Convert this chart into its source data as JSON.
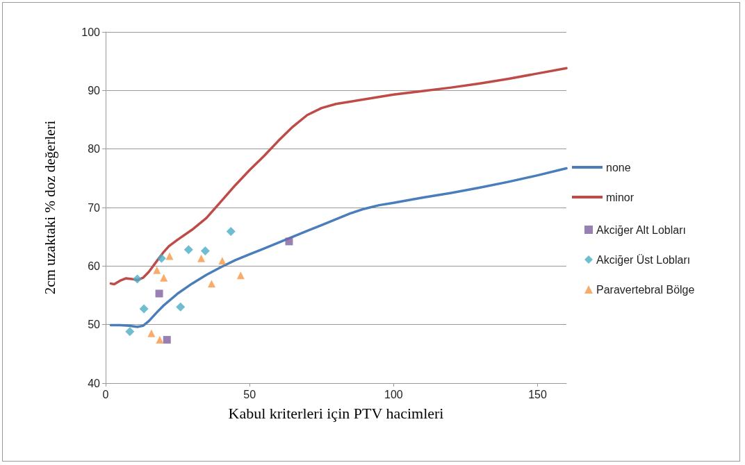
{
  "chart_data": {
    "type": "line",
    "xlabel": "Kabul kriterleri için PTV hacimleri",
    "ylabel": "2cm uzaktaki % doz değerleri",
    "xlim": [
      0,
      160
    ],
    "xticks": [
      0,
      50,
      100,
      150
    ],
    "ylim": [
      40,
      100
    ],
    "yticks": [
      40,
      50,
      60,
      70,
      80,
      90,
      100
    ],
    "grid": "y",
    "legend": "right",
    "marker": "none",
    "line_style": "solid",
    "series": [
      {
        "name": "none",
        "color": "#4a7ebb",
        "x": [
          1.8,
          5,
          8,
          11,
          13,
          15,
          18,
          20,
          25,
          30,
          35,
          40,
          45,
          50,
          55,
          60,
          65,
          70,
          75,
          80,
          85,
          90,
          95,
          100,
          110,
          120,
          130,
          140,
          150,
          160
        ],
        "values": [
          49.9,
          49.9,
          49.8,
          49.6,
          49.8,
          50.6,
          52.2,
          53.2,
          55.3,
          57.0,
          58.5,
          59.8,
          61.0,
          62.0,
          63.0,
          64.0,
          65.0,
          66.0,
          67.0,
          68.0,
          69.0,
          69.8,
          70.4,
          70.8,
          71.7,
          72.5,
          73.4,
          74.4,
          75.5,
          76.7
        ]
      },
      {
        "name": "minor",
        "color": "#be4b48",
        "x": [
          1.8,
          3,
          5,
          7,
          9,
          11,
          13,
          15,
          18,
          20,
          22,
          25,
          30,
          35,
          40,
          45,
          50,
          55,
          60,
          65,
          70,
          75,
          80,
          90,
          100,
          110,
          120,
          130,
          140,
          150,
          160
        ],
        "values": [
          57.0,
          56.9,
          57.5,
          57.9,
          57.8,
          57.6,
          58.0,
          59.0,
          61.0,
          62.3,
          63.4,
          64.5,
          66.2,
          68.2,
          71.0,
          73.8,
          76.4,
          78.8,
          81.4,
          83.8,
          85.8,
          87.0,
          87.7,
          88.5,
          89.3,
          89.9,
          90.5,
          91.2,
          92.0,
          92.9,
          93.8
        ]
      },
      {
        "name": "Akciğer Alt Lobları",
        "type": "scatter",
        "marker": "square",
        "color": "#7f60a0",
        "x": [
          18.6,
          21.3,
          63.7
        ],
        "values": [
          55.3,
          47.4,
          64.2
        ]
      },
      {
        "name": "Akciğer Üst Lobları",
        "type": "scatter",
        "marker": "diamond",
        "color": "#4bacc6",
        "x": [
          8.4,
          11.0,
          13.3,
          19.4,
          26.0,
          28.8,
          34.6,
          43.5
        ],
        "values": [
          48.8,
          57.8,
          52.7,
          61.3,
          53.0,
          62.8,
          62.6,
          65.9
        ]
      },
      {
        "name": "Paravertebral Bölge",
        "type": "scatter",
        "marker": "triangle",
        "color": "#f79646",
        "x": [
          15.9,
          18.8,
          17.8,
          20.2,
          22.2,
          33.2,
          36.8,
          40.5,
          46.9
        ],
        "values": [
          48.5,
          47.4,
          59.3,
          58.0,
          61.7,
          61.3,
          57.0,
          60.9,
          58.4
        ]
      }
    ]
  }
}
